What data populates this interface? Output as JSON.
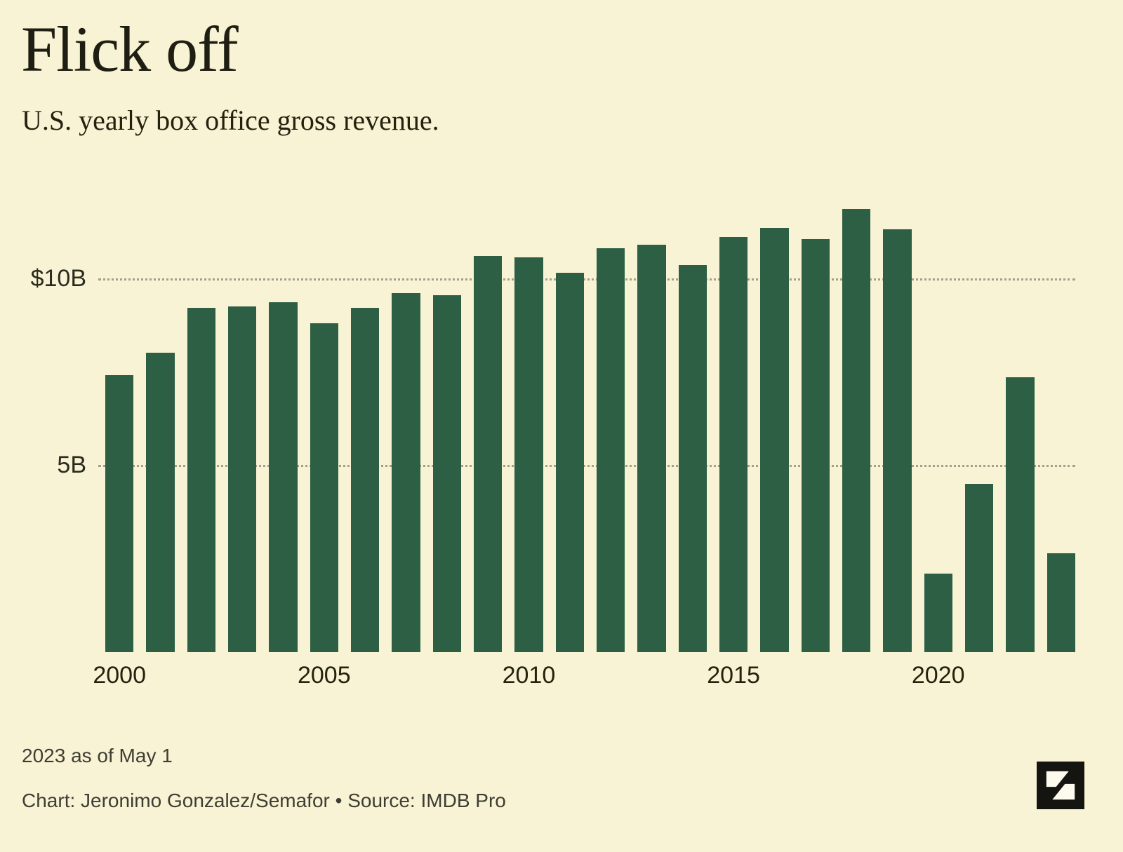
{
  "header": {
    "title": "Flick off",
    "subtitle": "U.S. yearly box office gross revenue."
  },
  "chart_data": {
    "type": "bar",
    "title": "Flick off",
    "subtitle": "U.S. yearly box office gross revenue.",
    "xlabel": "",
    "ylabel": "U.S. yearly box office gross revenue ($B)",
    "categories": [
      "2000",
      "2001",
      "2002",
      "2003",
      "2004",
      "2005",
      "2006",
      "2007",
      "2008",
      "2009",
      "2010",
      "2011",
      "2012",
      "2013",
      "2014",
      "2015",
      "2016",
      "2017",
      "2018",
      "2019",
      "2020",
      "2021",
      "2022",
      "2023"
    ],
    "values": [
      7.4,
      8.0,
      9.2,
      9.25,
      9.35,
      8.8,
      9.2,
      9.6,
      9.55,
      10.6,
      10.55,
      10.15,
      10.8,
      10.9,
      10.35,
      11.1,
      11.35,
      11.05,
      11.85,
      11.3,
      2.1,
      4.5,
      7.35,
      2.65
    ],
    "ylim": [
      0,
      12
    ],
    "grid": "horizontal-dotted",
    "legend_position": "none",
    "gridlines": [
      {
        "value": 10,
        "label": "$10B"
      },
      {
        "value": 5,
        "label": "5B"
      }
    ],
    "x_ticks": [
      {
        "index": 0,
        "label": "2000"
      },
      {
        "index": 5,
        "label": "2005"
      },
      {
        "index": 10,
        "label": "2010"
      },
      {
        "index": 15,
        "label": "2015"
      },
      {
        "index": 20,
        "label": "2020"
      }
    ],
    "bar_color": "#2c5f43",
    "background_color": "#f8f3d4"
  },
  "footer": {
    "note": "2023 as of May 1",
    "credit": "Chart: Jeronimo Gonzalez/Semafor • Source: IMDB Pro",
    "logo": "semafor-logo"
  }
}
